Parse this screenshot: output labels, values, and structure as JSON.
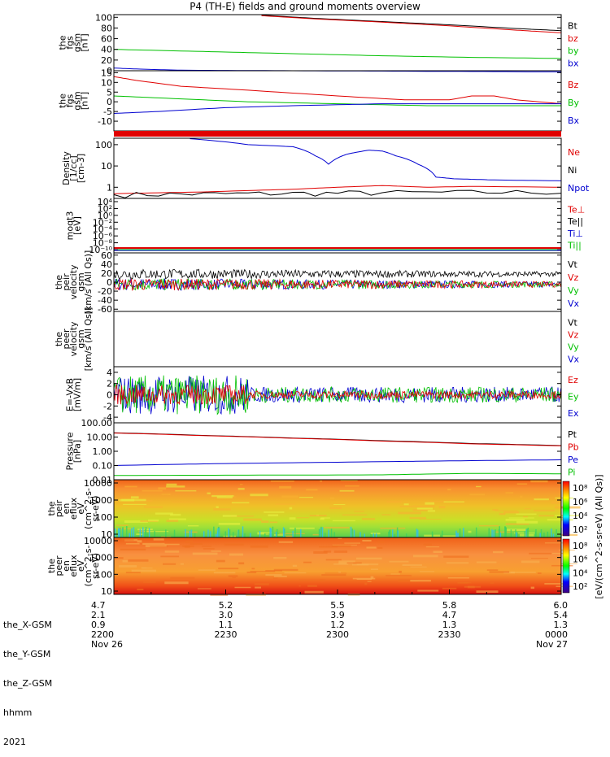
{
  "title": "P4 (TH-E) fields and ground moments overview",
  "chart_data": [
    {
      "type": "line",
      "ylabel": [
        "the",
        "fgs",
        "gsm",
        "[nT]"
      ],
      "yticks": [
        "100",
        "80",
        "60",
        "40",
        "20",
        "0"
      ],
      "ylim": [
        0,
        105
      ],
      "series": [
        {
          "name": "Bt",
          "color": "#000000",
          "x": [
            0.33,
            0.45,
            0.6,
            0.75,
            0.9,
            1.0
          ],
          "y": [
            104,
            98,
            92,
            86,
            79,
            75
          ]
        },
        {
          "name": "bz",
          "color": "#e00000",
          "x": [
            0.33,
            0.45,
            0.6,
            0.75,
            0.9,
            1.0
          ],
          "y": [
            103,
            97,
            91,
            84,
            76,
            71
          ]
        },
        {
          "name": "by",
          "color": "#00c000",
          "x": [
            0.0,
            0.2,
            0.4,
            0.6,
            0.8,
            1.0
          ],
          "y": [
            40,
            36,
            32,
            28,
            25,
            23
          ]
        },
        {
          "name": "bx",
          "color": "#0000d0",
          "x": [
            0.0,
            0.06,
            0.15,
            0.4,
            0.7,
            1.0
          ],
          "y": [
            5,
            3,
            1,
            0,
            -1,
            -2
          ]
        }
      ]
    },
    {
      "type": "line",
      "ylabel": [
        "the",
        "fgs",
        "gsm",
        "[nT]"
      ],
      "yticks": [
        "15",
        "10",
        "5",
        "0",
        "-5",
        "-10"
      ],
      "ylim": [
        -15,
        16
      ],
      "series": [
        {
          "name": "Bz",
          "color": "#e00000",
          "x": [
            0.0,
            0.05,
            0.15,
            0.3,
            0.5,
            0.65,
            0.75,
            0.8,
            0.85,
            0.9,
            1.0
          ],
          "y": [
            13,
            11,
            8,
            6,
            3,
            1,
            1,
            3,
            3,
            1,
            -1
          ]
        },
        {
          "name": "By",
          "color": "#00c000",
          "x": [
            0.0,
            0.1,
            0.3,
            0.5,
            0.7,
            0.9,
            1.0
          ],
          "y": [
            3,
            2,
            0,
            -1,
            -2,
            -2,
            -2
          ]
        },
        {
          "name": "Bx",
          "color": "#0000d0",
          "x": [
            0.0,
            0.1,
            0.25,
            0.4,
            0.6,
            0.8,
            1.0
          ],
          "y": [
            -6,
            -5,
            -3,
            -2,
            -1,
            -1,
            -1
          ]
        }
      ]
    },
    {
      "type": "line",
      "ylabel": [
        "Density",
        "[1/cc]",
        "[cm-3]"
      ],
      "yticks": [
        "100",
        "10",
        "1"
      ],
      "yscale": "log",
      "ylim": [
        0.3,
        200
      ],
      "series": [
        {
          "name": "Ne",
          "color": "#e00000",
          "x": [
            0.0,
            0.2,
            0.4,
            0.5,
            0.6,
            0.7,
            0.8,
            1.0
          ],
          "y": [
            0.5,
            0.6,
            0.8,
            1.0,
            1.2,
            1.0,
            1.1,
            1.0
          ]
        },
        {
          "name": "Ni",
          "color": "#000000",
          "x": [
            0.0,
            0.3,
            0.6,
            1.0
          ],
          "y": [
            0.45,
            0.5,
            0.55,
            0.6
          ]
        },
        {
          "name": "Npot",
          "color": "#0000d0",
          "x": [
            0.17,
            0.3,
            0.4,
            0.45,
            0.48,
            0.52,
            0.57,
            0.6,
            0.63,
            0.68,
            0.72,
            0.76,
            0.85,
            1.0
          ],
          "y": [
            190,
            100,
            80,
            30,
            12,
            35,
            55,
            50,
            30,
            12,
            3,
            2.5,
            2.2,
            2.0
          ]
        }
      ]
    },
    {
      "type": "line",
      "ylabel": [
        "moqt3",
        "[eV]"
      ],
      "yticks": [
        "10⁴",
        "10²",
        "10⁰",
        "10⁻²",
        "10⁻⁴",
        "10⁻⁶",
        "10⁻⁸",
        "10⁻¹⁰"
      ],
      "series": [
        {
          "name": "Te⊥",
          "color": "#e00000"
        },
        {
          "name": "Te||",
          "color": "#000000"
        },
        {
          "name": "Ti⊥",
          "color": "#0000d0"
        },
        {
          "name": "Ti||",
          "color": "#00c000"
        }
      ]
    },
    {
      "type": "line",
      "ylabel": [
        "the",
        "peir",
        "velocity",
        "gsm",
        "[km/s (All Qs)]"
      ],
      "yticks": [
        "60",
        "40",
        "20",
        "0",
        "-20",
        "-40",
        "-60"
      ],
      "ylim": [
        -65,
        65
      ],
      "series": [
        {
          "name": "Vt",
          "color": "#000000"
        },
        {
          "name": "Vz",
          "color": "#e00000"
        },
        {
          "name": "Vy",
          "color": "#00c000"
        },
        {
          "name": "Vx",
          "color": "#0000d0"
        }
      ]
    },
    {
      "type": "line",
      "ylabel": [
        "the",
        "peer",
        "velocity",
        "gsm",
        "[km/s (All Qs)]"
      ],
      "series": [
        {
          "name": "Vt",
          "color": "#000000"
        },
        {
          "name": "Vz",
          "color": "#e00000"
        },
        {
          "name": "Vy",
          "color": "#00c000"
        },
        {
          "name": "Vx",
          "color": "#0000d0"
        }
      ]
    },
    {
      "type": "line",
      "ylabel": [
        "E=-VxB",
        "[mV/m]"
      ],
      "yticks": [
        "4",
        "2",
        "0",
        "-2",
        "-4"
      ],
      "ylim": [
        -5,
        5
      ],
      "series": [
        {
          "name": "Ez",
          "color": "#e00000"
        },
        {
          "name": "Ey",
          "color": "#00c000"
        },
        {
          "name": "Ex",
          "color": "#0000d0"
        }
      ]
    },
    {
      "type": "line",
      "ylabel": [
        "Pressure",
        "[nPa]"
      ],
      "yticks": [
        "100.00",
        "10.00",
        "1.00",
        "0.10",
        "0.01"
      ],
      "yscale": "log",
      "ylim": [
        0.01,
        100
      ],
      "series": [
        {
          "name": "Pt",
          "color": "#000000",
          "x": [
            0.0,
            0.2,
            0.4,
            0.6,
            0.8,
            1.0
          ],
          "y": [
            20,
            13,
            8.5,
            5.5,
            3.5,
            2.5
          ]
        },
        {
          "name": "Pb",
          "color": "#e00000",
          "x": [
            0.0,
            0.2,
            0.4,
            0.6,
            0.8,
            1.0
          ],
          "y": [
            19,
            12.5,
            8.2,
            5.2,
            3.3,
            2.4
          ]
        },
        {
          "name": "Pe",
          "color": "#0000d0",
          "x": [
            0.0,
            0.2,
            0.5,
            0.8,
            1.0
          ],
          "y": [
            0.1,
            0.13,
            0.17,
            0.22,
            0.25
          ]
        },
        {
          "name": "Pi",
          "color": "#00c000",
          "x": [
            0.0,
            0.3,
            0.6,
            0.8,
            1.0
          ],
          "y": [
            0.02,
            0.021,
            0.022,
            0.028,
            0.026
          ]
        }
      ]
    },
    {
      "type": "heatmap",
      "ylabel": [
        "the",
        "peir",
        "en",
        "eflux",
        "eV",
        "(cm^2-s-",
        "sr-eV)"
      ],
      "yticks": [
        "10000",
        "1000",
        "100",
        "10"
      ],
      "colorbar_ticks": [
        "10⁸",
        "10⁶",
        "10⁴",
        "10²"
      ]
    },
    {
      "type": "heatmap",
      "ylabel": [
        "the",
        "peer",
        "en",
        "eflux",
        "eV",
        "(cm^2-s-",
        "sr-eV)"
      ],
      "yticks": [
        "10000",
        "1000",
        "100",
        "10"
      ],
      "colorbar_ticks": [
        "10⁸",
        "10⁶",
        "10⁴",
        "10²"
      ]
    }
  ],
  "colorbar_label": "[eV/(cm^2-s-sr-eV) (All Qs)]",
  "x_axis": {
    "rows": [
      {
        "name": "the_X-GSM",
        "values": [
          "4.7",
          "5.2",
          "5.5",
          "5.8",
          "6.0"
        ]
      },
      {
        "name": "the_Y-GSM",
        "values": [
          "2.1",
          "3.0",
          "3.9",
          "4.7",
          "5.4"
        ]
      },
      {
        "name": "the_Z-GSM",
        "values": [
          "0.9",
          "1.1",
          "1.2",
          "1.3",
          "1.3"
        ]
      },
      {
        "name": "hhmm",
        "values": [
          "2200",
          "2230",
          "2300",
          "2330",
          "0000"
        ]
      },
      {
        "name": "2021",
        "values": [
          "Nov 26",
          "",
          "",
          "",
          "Nov 27"
        ]
      }
    ]
  }
}
